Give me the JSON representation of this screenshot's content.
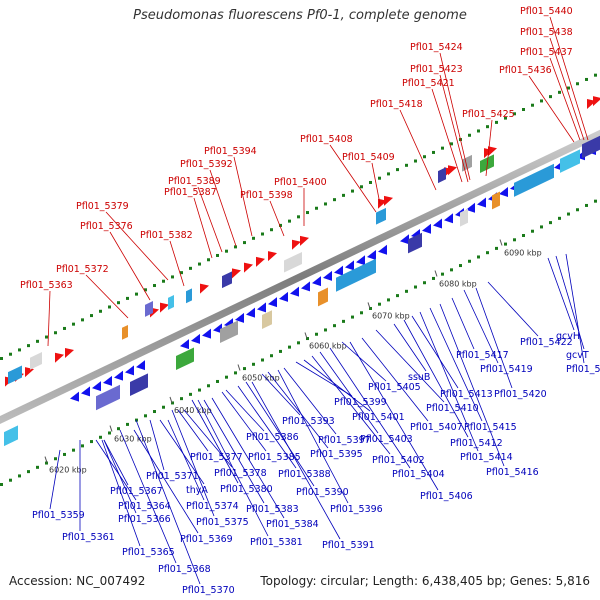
{
  "title": "Pseudomonas fluorescens Pf0-1, complete genome",
  "footer": {
    "accession": "Accession: NC_007492",
    "summary": "Topology: circular; Length: 6,438,405 bp; Genes: 5,816"
  },
  "colors": {
    "backbone": "#8a8a8a",
    "forward_strand": "#ee1111",
    "reverse_strand": "#1111ee",
    "forward_label": "#cc0000",
    "reverse_label": "#0000bb",
    "scale_dots": "#1a7a1a"
  },
  "scale_ticks": [
    {
      "label": "6020 kbp"
    },
    {
      "label": "6030 kbp"
    },
    {
      "label": "6040 kbp"
    },
    {
      "label": "6050 kbp"
    },
    {
      "label": "6060 kbp"
    },
    {
      "label": "6070 kbp"
    },
    {
      "label": "6080 kbp"
    },
    {
      "label": "6090 kbp"
    }
  ],
  "forward_genes": [
    "Pfl01_5363",
    "Pfl01_5372",
    "Pfl01_5376",
    "Pfl01_5379",
    "Pfl01_5382",
    "Pfl01_5387",
    "Pfl01_5389",
    "Pfl01_5392",
    "Pfl01_5394",
    "Pfl01_5398",
    "Pfl01_5400",
    "Pfl01_5408",
    "Pfl01_5409",
    "Pfl01_5418",
    "Pfl01_5421",
    "Pfl01_5423",
    "Pfl01_5424",
    "Pfl01_5425",
    "Pfl01_5436",
    "Pfl01_5437",
    "Pfl01_5438",
    "Pfl01_5440"
  ],
  "reverse_genes": [
    "Pfl01_5359",
    "Pfl01_5361",
    "Pfl01_5364",
    "Pfl01_5365",
    "Pfl01_5366",
    "Pfl01_5367",
    "Pfl01_5368",
    "Pfl01_5369",
    "Pfl01_5370",
    "Pfl01_5371",
    "thyA",
    "Pfl01_5374",
    "Pfl01_5375",
    "Pfl01_5377",
    "Pfl01_5378",
    "Pfl01_5380",
    "Pfl01_5381",
    "Pfl01_5383",
    "Pfl01_5384",
    "Pfl01_5385",
    "Pfl01_5386",
    "Pfl01_5388",
    "Pfl01_5390",
    "Pfl01_5391",
    "Pfl01_5393",
    "Pfl01_5395",
    "Pfl01_5396",
    "Pfl01_5397",
    "Pfl01_5399",
    "Pfl01_5401",
    "Pfl01_5402",
    "Pfl01_5403",
    "Pfl01_5404",
    "Pfl01_5405",
    "Pfl01_5406",
    "Pfl01_5407",
    "Pfl01_5410",
    "ssuB",
    "Pfl01_5412",
    "Pfl01_5413",
    "Pfl01_5414",
    "Pfl01_5415",
    "Pfl01_5416",
    "Pfl01_5417",
    "Pfl01_5419",
    "Pfl01_5420",
    "Pfl01_5422",
    "gcvH",
    "gcvT",
    "Pfl01_5426"
  ]
}
